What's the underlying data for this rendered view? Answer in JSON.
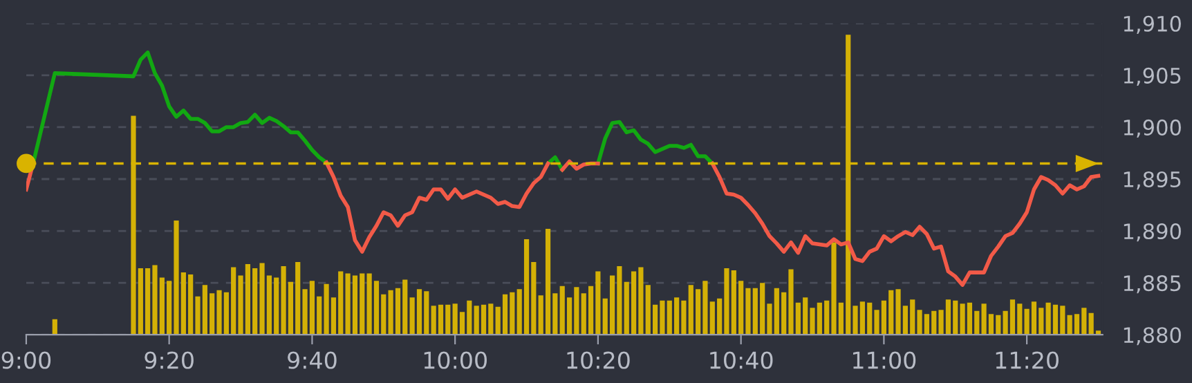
{
  "chart_data": {
    "type": "line",
    "xlim": [
      9,
      11.51
    ],
    "xticks": [
      {
        "value": 9,
        "label": "9:00"
      },
      {
        "value": 9.3333,
        "label": "9:20"
      },
      {
        "value": 9.6667,
        "label": "9:40"
      },
      {
        "value": 10,
        "label": "10:00"
      },
      {
        "value": 10.3333,
        "label": "10:20"
      },
      {
        "value": 10.6667,
        "label": "10:40"
      },
      {
        "value": 11,
        "label": "11:00"
      },
      {
        "value": 11.3333,
        "label": "11:20"
      }
    ],
    "ylim": [
      1880,
      1910
    ],
    "yticks": [
      {
        "value": 1880,
        "label": "1,880"
      },
      {
        "value": 1885,
        "label": "1,885"
      },
      {
        "value": 1890,
        "label": "1,890"
      },
      {
        "value": 1895,
        "label": "1,895"
      },
      {
        "value": 1900,
        "label": "1,900"
      },
      {
        "value": 1905,
        "label": "1,905"
      },
      {
        "value": 1910,
        "label": "1,910"
      }
    ],
    "grid": "y",
    "legend": false,
    "marker": "none",
    "line_style": "solid",
    "ref_lines": [
      {
        "axis": "y",
        "value": 1896.5,
        "color": "#d9b300",
        "line_style": "dashed"
      }
    ],
    "series": [
      {
        "type": "bar",
        "color": "#d4b106",
        "x": [
          9.0667,
          9.25,
          9.2667,
          9.2833,
          9.3,
          9.3167,
          9.3333,
          9.35,
          9.3667,
          9.3833,
          9.4,
          9.4167,
          9.4333,
          9.45,
          9.4667,
          9.4833,
          9.5,
          9.5167,
          9.5333,
          9.55,
          9.5667,
          9.5833,
          9.6,
          9.6167,
          9.6333,
          9.65,
          9.6667,
          9.6833,
          9.7,
          9.7167,
          9.7333,
          9.75,
          9.7667,
          9.7833,
          9.8,
          9.8167,
          9.8333,
          9.85,
          9.8667,
          9.8833,
          9.9,
          9.9167,
          9.9333,
          9.95,
          9.9667,
          9.9833,
          10,
          10.0167,
          10.0333,
          10.05,
          10.0667,
          10.0833,
          10.1,
          10.1167,
          10.1333,
          10.15,
          10.1667,
          10.1833,
          10.2,
          10.2167,
          10.2333,
          10.25,
          10.2667,
          10.2833,
          10.3,
          10.3167,
          10.3333,
          10.35,
          10.3667,
          10.3833,
          10.4,
          10.4167,
          10.4333,
          10.45,
          10.4667,
          10.4833,
          10.5,
          10.5167,
          10.5333,
          10.55,
          10.5667,
          10.5833,
          10.6,
          10.6167,
          10.6333,
          10.65,
          10.6667,
          10.6833,
          10.7,
          10.7167,
          10.7333,
          10.75,
          10.7667,
          10.7833,
          10.8,
          10.8167,
          10.8333,
          10.85,
          10.8667,
          10.8833,
          10.9,
          10.9167,
          10.9333,
          10.95,
          10.9667,
          10.9833,
          11,
          11.0167,
          11.0333,
          11.05,
          11.0667,
          11.0833,
          11.1,
          11.1167,
          11.1333,
          11.15,
          11.1667,
          11.1833,
          11.2,
          11.2167,
          11.2333,
          11.25,
          11.2667,
          11.2833,
          11.3,
          11.3167,
          11.3333,
          11.35,
          11.3667,
          11.3833,
          11.4,
          11.4167,
          11.4333,
          11.45,
          11.4667,
          11.4833,
          11.5
        ],
        "values": [
          1881.5,
          1901.1,
          1886.4,
          1886.4,
          1886.7,
          1885.5,
          1885.2,
          1891.0,
          1886.0,
          1885.8,
          1883.7,
          1884.8,
          1884.0,
          1884.3,
          1884.1,
          1886.5,
          1885.7,
          1886.8,
          1886.4,
          1886.9,
          1885.7,
          1885.5,
          1886.6,
          1885.1,
          1887.0,
          1884.4,
          1885.2,
          1883.7,
          1884.9,
          1883.6,
          1886.1,
          1885.9,
          1885.7,
          1885.9,
          1885.9,
          1885.2,
          1883.9,
          1884.3,
          1884.5,
          1885.3,
          1883.6,
          1884.4,
          1884.2,
          1882.8,
          1882.9,
          1882.9,
          1883.0,
          1882.2,
          1883.3,
          1882.8,
          1882.9,
          1883.0,
          1882.7,
          1883.9,
          1884.1,
          1884.4,
          1889.2,
          1887.0,
          1883.8,
          1890.2,
          1884.0,
          1884.7,
          1883.6,
          1884.6,
          1884.0,
          1884.7,
          1886.1,
          1883.5,
          1885.7,
          1886.6,
          1885.1,
          1886.1,
          1886.5,
          1884.8,
          1882.9,
          1883.3,
          1883.3,
          1883.6,
          1883.3,
          1884.8,
          1884.4,
          1885.2,
          1883.2,
          1883.5,
          1886.4,
          1886.2,
          1885.2,
          1884.5,
          1884.5,
          1885.0,
          1883.0,
          1884.5,
          1884.1,
          1886.3,
          1883.1,
          1883.6,
          1882.6,
          1883.1,
          1883.3,
          1888.9,
          1883.1,
          1908.9,
          1882.8,
          1883.2,
          1883.1,
          1882.4,
          1883.3,
          1884.3,
          1884.4,
          1882.8,
          1883.4,
          1882.4,
          1882.0,
          1882.3,
          1882.4,
          1883.4,
          1883.3,
          1883.0,
          1883.1,
          1882.3,
          1883.0,
          1882.0,
          1881.9,
          1882.3,
          1883.4,
          1883.0,
          1882.5,
          1883.2,
          1882.6,
          1883.1,
          1882.9,
          1882.8,
          1881.9,
          1882.0,
          1882.6,
          1882.1,
          1880.4
        ]
      },
      {
        "color": "#12a812",
        "x": [
          9.0167,
          9.0667,
          9.25,
          9.2667,
          9.2833,
          9.3,
          9.3167,
          9.3333,
          9.35,
          9.3667,
          9.3833,
          9.4,
          9.4167,
          9.4333,
          9.45,
          9.4667,
          9.4833,
          9.5,
          9.5167,
          9.5333,
          9.55,
          9.5667,
          9.5833,
          9.6,
          9.6167,
          9.6333,
          9.65,
          9.6667,
          9.6833,
          9.7,
          9.7167,
          10.2167,
          10.2333,
          10.25,
          10.2667,
          10.3333,
          10.35,
          10.3667,
          10.3833,
          10.4,
          10.4167,
          10.4333,
          10.45,
          10.4667,
          10.4833,
          10.5,
          10.5167,
          10.5333,
          10.55,
          10.5667,
          10.5833,
          10.6
        ],
        "values": [
          1896.6,
          1905.2,
          1904.9,
          1906.5,
          1907.2,
          1905.2,
          1904.0,
          1902.0,
          1901.0,
          1901.6,
          1900.8,
          1900.8,
          1900.4,
          1899.6,
          1899.6,
          1900.0,
          1900.0,
          1900.4,
          1900.5,
          1901.2,
          1900.4,
          1900.9,
          1900.6,
          1900.1,
          1899.5,
          1899.5,
          1898.7,
          1897.8,
          1897.1,
          1896.6,
          null,
          1896.5,
          1897.1,
          1895.9,
          null,
          1896.5,
          1898.9,
          1900.4,
          1900.5,
          1899.5,
          1899.7,
          1898.8,
          1898.4,
          1897.6,
          1897.9,
          1898.2,
          1898.2,
          1898.0,
          1898.3,
          1897.2,
          1897.2,
          1896.5
        ]
      },
      {
        "color": "#f25a48",
        "x": [
          9,
          9.0167,
          9.0667,
          9.7,
          9.7167,
          9.7333,
          9.75,
          9.7667,
          9.7833,
          9.8,
          9.8167,
          9.8333,
          9.85,
          9.8667,
          9.8833,
          9.9,
          9.9167,
          9.9333,
          9.95,
          9.9667,
          9.9833,
          10,
          10.0167,
          10.0333,
          10.05,
          10.0667,
          10.0833,
          10.1,
          10.1167,
          10.1333,
          10.15,
          10.1667,
          10.1833,
          10.2,
          10.2167,
          10.2333,
          10.25,
          10.2667,
          10.2833,
          10.3,
          10.3167,
          10.3333,
          10.35,
          10.6,
          10.6167,
          10.6333,
          10.65,
          10.6667,
          10.6833,
          10.7,
          10.7167,
          10.7333,
          10.75,
          10.7667,
          10.7833,
          10.8,
          10.8167,
          10.8333,
          10.85,
          10.8667,
          10.8833,
          10.9,
          10.9167,
          10.9333,
          10.95,
          10.9667,
          10.9833,
          11,
          11.0167,
          11.0333,
          11.05,
          11.0667,
          11.0833,
          11.1,
          11.1167,
          11.1333,
          11.15,
          11.1667,
          11.1833,
          11.2,
          11.2167,
          11.2333,
          11.25,
          11.2667,
          11.2833,
          11.3,
          11.3167,
          11.3333,
          11.35,
          11.3667,
          11.3833,
          11.4,
          11.4167,
          11.4333,
          11.45,
          11.4667,
          11.4833,
          11.5
        ],
        "values": [
          1894.0,
          1896.6,
          null,
          1896.6,
          1895.2,
          1893.4,
          1892.3,
          1889.1,
          1888.0,
          1889.4,
          1890.5,
          1891.8,
          1891.5,
          1890.5,
          1891.5,
          1891.8,
          1893.2,
          1893.0,
          1894.0,
          1894.0,
          1893.1,
          1894.0,
          1893.2,
          1893.5,
          1893.8,
          1893.5,
          1893.2,
          1892.6,
          1892.8,
          1892.4,
          1892.3,
          1893.6,
          1894.6,
          1895.2,
          1896.5,
          null,
          1895.9,
          1896.7,
          1896.0,
          1896.4,
          1896.5,
          1896.5,
          null,
          1896.5,
          1895.2,
          1893.6,
          1893.5,
          1893.2,
          1892.5,
          1891.7,
          1890.7,
          1889.5,
          1888.8,
          1888.0,
          1888.9,
          1887.9,
          1889.5,
          1888.8,
          1888.7,
          1888.6,
          1889.2,
          1888.7,
          1888.9,
          1887.3,
          1887.1,
          1888.0,
          1888.3,
          1889.5,
          1889.0,
          1889.5,
          1889.9,
          1889.6,
          1890.4,
          1889.7,
          1888.3,
          1888.5,
          1886.1,
          1885.6,
          1884.8,
          1886.0,
          1886.0,
          1886.0,
          1887.6,
          1888.5,
          1889.5,
          1889.8,
          1890.7,
          1891.8,
          1894.0,
          1895.2,
          1894.9,
          1894.4,
          1893.6,
          1894.4,
          1894.0,
          1894.3,
          1895.2,
          1895.3
        ]
      }
    ]
  }
}
